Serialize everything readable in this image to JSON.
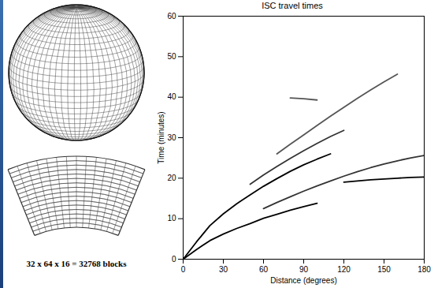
{
  "chart_data": {
    "type": "line",
    "title": "ISC travel times",
    "x_label": "Distance (degrees)",
    "y_label": "Time (minutes)",
    "x": [
      0,
      10,
      20,
      30,
      40,
      50,
      60,
      70,
      80,
      90,
      100,
      110,
      120,
      130,
      140,
      150,
      160,
      170,
      180
    ],
    "xlim": [
      0,
      180
    ],
    "ylim": [
      0,
      60
    ],
    "xticks": [
      0,
      30,
      60,
      90,
      120,
      150,
      180
    ],
    "yticks": [
      0,
      10,
      20,
      30,
      40,
      50,
      60
    ],
    "grid": false,
    "series": [
      {
        "color": "#000000",
        "values": [
          0,
          2.4,
          4.6,
          6.2,
          7.6,
          8.8,
          10.1,
          11.1,
          12.1,
          13.0,
          13.8,
          null,
          null,
          null,
          null,
          null,
          null,
          null,
          null
        ]
      },
      {
        "color": "#000000",
        "values": [
          null,
          null,
          null,
          null,
          null,
          null,
          null,
          null,
          null,
          null,
          null,
          null,
          19.0,
          19.3,
          19.6,
          19.8,
          20.0,
          20.2,
          20.3
        ]
      },
      {
        "color": "#333333",
        "values": [
          null,
          null,
          null,
          null,
          null,
          null,
          12.5,
          14.0,
          15.4,
          16.8,
          18.1,
          19.3,
          20.5,
          21.6,
          22.6,
          23.5,
          24.3,
          25.0,
          25.6
        ]
      },
      {
        "color": "#000000",
        "values": [
          0,
          4.3,
          8.3,
          11.2,
          13.7,
          15.9,
          18.0,
          19.9,
          21.7,
          23.3,
          24.7,
          26.0,
          null,
          null,
          null,
          null,
          null,
          null,
          null
        ]
      },
      {
        "color": "#333333",
        "values": [
          null,
          null,
          null,
          null,
          null,
          18.5,
          20.8,
          22.9,
          24.9,
          26.8,
          28.6,
          30.3,
          31.8,
          null,
          null,
          null,
          null,
          null,
          null
        ]
      },
      {
        "color": "#555555",
        "values": [
          null,
          null,
          null,
          null,
          null,
          null,
          null,
          26.0,
          28.4,
          30.7,
          33.0,
          35.3,
          37.5,
          39.7,
          41.8,
          43.8,
          45.7,
          null,
          null
        ]
      },
      {
        "color": "#555555",
        "values": [
          null,
          null,
          null,
          null,
          null,
          null,
          null,
          null,
          39.8,
          39.6,
          39.3,
          null,
          null,
          null,
          null,
          null,
          null,
          null,
          null
        ]
      }
    ]
  },
  "diagram": {
    "caption": "32 x 64 x 16 = 32768 blocks"
  }
}
